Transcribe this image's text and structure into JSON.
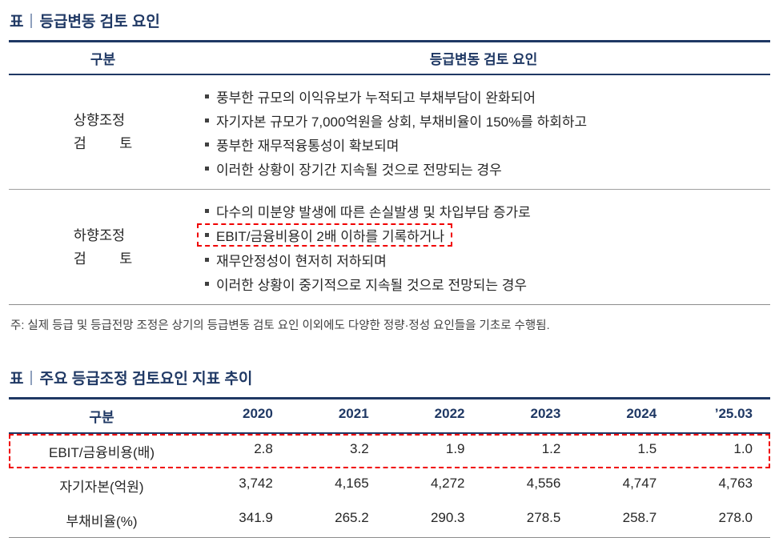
{
  "table1": {
    "title_prefix": "표",
    "title": "등급변동 검토 요인",
    "headers": [
      "구분",
      "등급변동 검토 요인"
    ],
    "rows": [
      {
        "category_lines": [
          "상향조정",
          "검 토"
        ],
        "items": [
          {
            "text": "풍부한 규모의 이익유보가 누적되고 부채부담이 완화되어",
            "highlight": false
          },
          {
            "text": "자기자본 규모가 7,000억원을 상회, 부채비율이 150%를 하회하고",
            "highlight": false
          },
          {
            "text": "풍부한 재무적융통성이 확보되며",
            "highlight": false
          },
          {
            "text": "이러한 상황이 장기간 지속될 것으로 전망되는 경우",
            "highlight": false
          }
        ]
      },
      {
        "category_lines": [
          "하향조정",
          "검 토"
        ],
        "items": [
          {
            "text": "다수의 미분양 발생에 따른 손실발생 및 차입부담 증가로",
            "highlight": false
          },
          {
            "text": "EBIT/금융비용이 2배 이하를 기록하거나",
            "highlight": true
          },
          {
            "text": "재무안정성이 현저히 저하되며",
            "highlight": false
          },
          {
            "text": "이러한 상황이 중기적으로 지속될 것으로 전망되는 경우",
            "highlight": false
          }
        ]
      }
    ],
    "note": "주: 실제 등급 및 등급전망 조정은 상기의 등급변동 검토 요인 이외에도 다양한 정량·정성 요인들을 기초로 수행됨."
  },
  "table2": {
    "title_prefix": "표",
    "title": "주요 등급조정 검토요인 지표 추이",
    "headers": [
      "구분",
      "2020",
      "2021",
      "2022",
      "2023",
      "2024",
      "’25.03"
    ],
    "rows": [
      {
        "label": "EBIT/금융비용(배)",
        "values": [
          "2.8",
          "3.2",
          "1.9",
          "1.2",
          "1.5",
          "1.0"
        ],
        "highlight": true
      },
      {
        "label": "자기자본(억원)",
        "values": [
          "3,742",
          "4,165",
          "4,272",
          "4,556",
          "4,747",
          "4,763"
        ],
        "highlight": false
      },
      {
        "label": "부채비율(%)",
        "values": [
          "341.9",
          "265.2",
          "290.3",
          "278.5",
          "258.7",
          "278.0"
        ],
        "highlight": false
      }
    ]
  }
}
